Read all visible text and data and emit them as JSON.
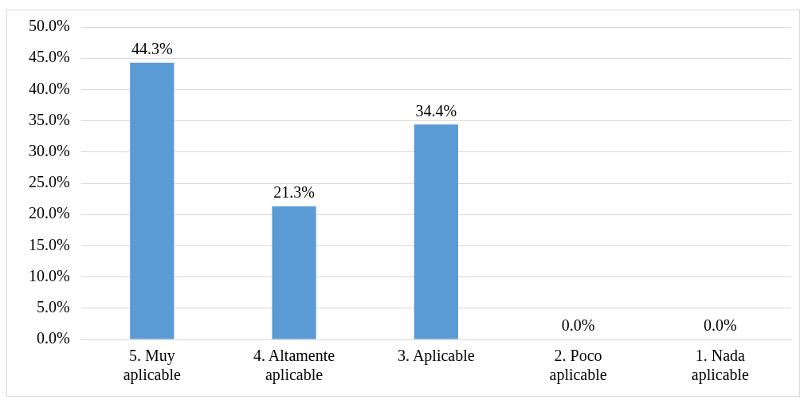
{
  "chart_data": {
    "type": "bar",
    "categories": [
      "5. Muy aplicable",
      "4. Altamente aplicable",
      "3. Aplicable",
      "2. Poco aplicable",
      "1. Nada aplicable"
    ],
    "values": [
      44.3,
      21.3,
      34.4,
      0,
      0
    ],
    "value_labels": [
      "44.3%",
      "21.3%",
      "34.4%",
      "0.0%",
      "0.0%"
    ],
    "color": "#5b9bd5",
    "ylim": [
      0,
      50
    ],
    "yticks": [
      {
        "value": 0,
        "label": "0.0%"
      },
      {
        "value": 5,
        "label": "5.0%"
      },
      {
        "value": 10,
        "label": "10.0%"
      },
      {
        "value": 15,
        "label": "15.0%"
      },
      {
        "value": 20,
        "label": "20.0%"
      },
      {
        "value": 25,
        "label": "25.0%"
      },
      {
        "value": 30,
        "label": "30.0%"
      },
      {
        "value": 35,
        "label": "35.0%"
      },
      {
        "value": 40,
        "label": "40.0%"
      },
      {
        "value": 45,
        "label": "45.0%"
      },
      {
        "value": 50,
        "label": "50.0%"
      }
    ],
    "grid": "y",
    "legend": false
  }
}
